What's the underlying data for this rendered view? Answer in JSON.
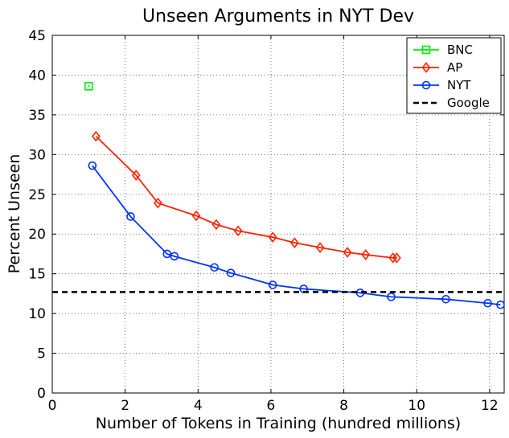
{
  "chart_data": {
    "type": "line",
    "title": "Unseen Arguments in NYT Dev",
    "xlabel": "Number of Tokens in Training (hundred millions)",
    "ylabel": "Percent Unseen",
    "xlim": [
      0,
      12.4
    ],
    "ylim": [
      0,
      45
    ],
    "xticks": [
      0,
      2,
      4,
      6,
      8,
      10,
      12
    ],
    "yticks": [
      0,
      5,
      10,
      15,
      20,
      25,
      30,
      35,
      40,
      45
    ],
    "grid": true,
    "legend_position": "top-right",
    "series": [
      {
        "name": "BNC",
        "color": "#00ee00",
        "marker": "square",
        "x": [
          1.0
        ],
        "y": [
          38.6
        ]
      },
      {
        "name": "AP",
        "color": "#ff2200",
        "marker": "diamond",
        "x": [
          1.2,
          2.3,
          2.9,
          3.95,
          4.5,
          5.1,
          6.05,
          6.65,
          7.35,
          8.1,
          8.6,
          9.35,
          9.45
        ],
        "y": [
          32.3,
          27.4,
          23.9,
          22.3,
          21.2,
          20.4,
          19.6,
          18.9,
          18.3,
          17.7,
          17.4,
          17.0,
          17.0
        ]
      },
      {
        "name": "NYT",
        "color": "#0033ff",
        "marker": "circle",
        "x": [
          1.1,
          2.15,
          3.15,
          3.35,
          4.45,
          4.9,
          6.05,
          6.9,
          8.45,
          9.3,
          10.8,
          11.95,
          12.3
        ],
        "y": [
          28.6,
          22.2,
          17.5,
          17.2,
          15.8,
          15.1,
          13.6,
          13.1,
          12.6,
          12.1,
          11.8,
          11.3,
          11.1
        ]
      },
      {
        "name": "Google",
        "color": "#000000",
        "marker": "none",
        "dashed": true,
        "x": [
          0,
          12.4
        ],
        "y": [
          12.7,
          12.7
        ]
      }
    ]
  }
}
